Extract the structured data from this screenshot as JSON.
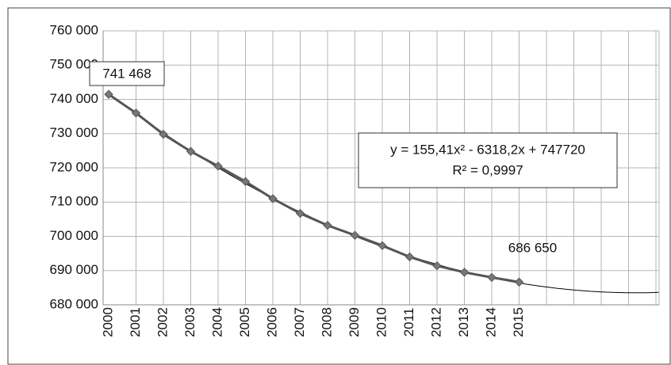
{
  "chart_data": {
    "type": "line",
    "categories": [
      "2000",
      "2001",
      "2002",
      "2003",
      "2004",
      "2005",
      "2006",
      "2007",
      "2008",
      "2009",
      "2010",
      "2011",
      "2012",
      "2013",
      "2014",
      "2015",
      null,
      null,
      null,
      null,
      null
    ],
    "values": [
      741468,
      736000,
      729800,
      724800,
      720500,
      716000,
      711000,
      706700,
      703200,
      700300,
      697300,
      694000,
      691400,
      689500,
      688000,
      686650,
      null,
      null,
      null,
      null,
      null
    ],
    "value_labels": [
      "741 468",
      null,
      null,
      null,
      null,
      null,
      null,
      null,
      null,
      null,
      null,
      null,
      null,
      null,
      null,
      "686 650",
      null,
      null,
      null,
      null,
      null
    ],
    "color": "#555555",
    "marker_color": "#777777",
    "ylim": [
      680000,
      760000
    ],
    "yticks": [
      {
        "value": 680000,
        "label": "680 000"
      },
      {
        "value": 690000,
        "label": "690 000"
      },
      {
        "value": 700000,
        "label": "700 000"
      },
      {
        "value": 710000,
        "label": "710 000"
      },
      {
        "value": 720000,
        "label": "720 000"
      },
      {
        "value": 730000,
        "label": "730 000"
      },
      {
        "value": 740000,
        "label": "740 000"
      },
      {
        "value": 750000,
        "label": "750 000"
      },
      {
        "value": 760000,
        "label": "760 000"
      }
    ],
    "grid": true,
    "trendline": {
      "type": "polynomial",
      "order": 2,
      "color": "#000000",
      "equation": "y = 155,41x² - 6318,2x + 747720",
      "r_squared": "R² = 0,9997"
    }
  }
}
